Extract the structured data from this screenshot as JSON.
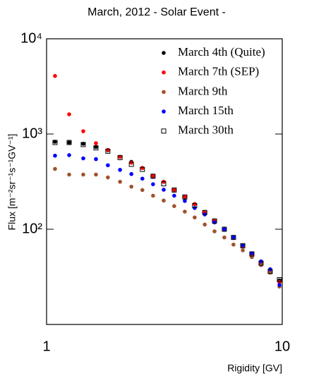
{
  "chart_data": {
    "type": "scatter",
    "title": "March, 2012 - Solar Event -",
    "x_label": "Rigidity [GV]",
    "y_label": "Flux [m⁻²sr⁻¹s⁻¹GV⁻¹]",
    "x_log": true,
    "y_log": true,
    "legend": "top-right",
    "xlim": [
      1,
      10
    ],
    "xticks": [
      1,
      10
    ],
    "ylim": [
      10,
      10000
    ],
    "yticks": [
      {
        "value": 100,
        "label": "10²"
      },
      {
        "value": 1000,
        "label": "10³"
      },
      {
        "value": 10000,
        "label": "10⁴"
      }
    ],
    "x": [
      1.086,
      1.247,
      1.431,
      1.62,
      1.82,
      2.05,
      2.29,
      2.55,
      2.83,
      3.14,
      3.48,
      3.86,
      4.25,
      4.69,
      5.16,
      5.68,
      6.21,
      6.8,
      7.43,
      8.13,
      8.89,
      9.73
    ],
    "series": [
      {
        "name": "March 4th (Quite)",
        "color": "#000000",
        "marker": "filled-circle",
        "values": [
          830,
          815,
          790,
          730,
          675,
          575,
          510,
          440,
          360,
          315,
          258,
          218,
          184,
          150,
          123,
          100,
          82,
          67,
          54,
          44,
          35.5,
          29
        ]
      },
      {
        "name": "March 7th (SEP)",
        "color": "#ff0000",
        "marker": "filled-circle",
        "values": [
          4070,
          1610,
          1070,
          800,
          680,
          575,
          500,
          440,
          365,
          315,
          260,
          220,
          184,
          150,
          123,
          100,
          82,
          67,
          54,
          44,
          35.5,
          27.8
        ]
      },
      {
        "name": "March 9th",
        "color": "#a0522d",
        "marker": "filled-circle",
        "values": [
          430,
          375,
          375,
          375,
          350,
          315,
          280,
          258,
          225,
          200,
          175,
          153,
          133,
          112,
          95,
          82,
          69,
          60,
          51,
          42,
          35,
          25
        ]
      },
      {
        "name": "March 15th",
        "color": "#0000ff",
        "marker": "filled-circle",
        "values": [
          592,
          600,
          555,
          545,
          470,
          420,
          380,
          340,
          297,
          260,
          225,
          198,
          167,
          143,
          118,
          100,
          82,
          68,
          56,
          46,
          38,
          26
        ]
      },
      {
        "name": "March 30th",
        "color": "#000000",
        "marker": "open-square",
        "values": [
          815,
          815,
          775,
          715,
          660,
          565,
          480,
          425,
          360,
          300,
          258,
          218,
          177,
          150,
          122,
          100,
          82,
          67,
          55,
          44,
          36,
          29.5
        ]
      }
    ]
  }
}
